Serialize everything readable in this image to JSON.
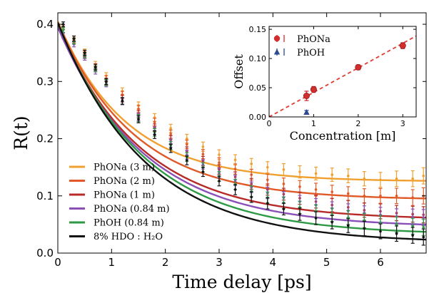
{
  "chart_data": [
    {
      "type": "line",
      "title": "",
      "xlabel": "Time delay [ps]",
      "ylabel": "R(t)",
      "xlim": [
        0,
        6.85
      ],
      "ylim": [
        0,
        0.42
      ],
      "xticks": [
        0,
        1,
        2,
        3,
        4,
        5,
        6
      ],
      "yticks": [
        0.0,
        0.1,
        0.2,
        0.3,
        0.4
      ],
      "xtick_labels": [
        "0",
        "1",
        "2",
        "3",
        "4",
        "5",
        "6"
      ],
      "ytick_labels": [
        "0.0",
        "0.1",
        "0.2",
        "0.3",
        "0.4"
      ],
      "legend_position": "bottom-left",
      "grid": false,
      "series": [
        {
          "name": "PhONa (3 m)",
          "color": "#f0a030",
          "fit": {
            "A": 0.28,
            "tau": 1.28,
            "C": 0.125
          },
          "x": [
            0.1,
            0.3,
            0.5,
            0.7,
            0.9,
            1.2,
            1.5,
            1.8,
            2.1,
            2.4,
            2.7,
            3.0,
            3.3,
            3.6,
            3.9,
            4.2,
            4.5,
            4.8,
            5.1,
            5.4,
            5.7,
            6.0,
            6.3,
            6.6,
            6.8
          ],
          "y": [
            0.395,
            0.375,
            0.352,
            0.33,
            0.31,
            0.283,
            0.258,
            0.237,
            0.218,
            0.2,
            0.186,
            0.172,
            0.163,
            0.156,
            0.15,
            0.146,
            0.142,
            0.139,
            0.137,
            0.135,
            0.13,
            0.128,
            0.13,
            0.13,
            0.135
          ]
        },
        {
          "name": "PhONa (2 m)",
          "color": "#e05a28",
          "fit": {
            "A": 0.31,
            "tau": 1.42,
            "C": 0.093
          },
          "x": [
            0.1,
            0.3,
            0.5,
            0.7,
            0.9,
            1.2,
            1.5,
            1.8,
            2.1,
            2.4,
            2.7,
            3.0,
            3.3,
            3.6,
            3.9,
            4.2,
            4.5,
            4.8,
            5.1,
            5.4,
            5.7,
            6.0,
            6.3,
            6.6,
            6.8
          ],
          "y": [
            0.395,
            0.372,
            0.348,
            0.326,
            0.305,
            0.277,
            0.252,
            0.229,
            0.208,
            0.19,
            0.173,
            0.158,
            0.147,
            0.137,
            0.128,
            0.121,
            0.116,
            0.111,
            0.107,
            0.104,
            0.1,
            0.1,
            0.1,
            0.097,
            0.1
          ]
        },
        {
          "name": "PhONa (1 m)",
          "color": "#b82a28",
          "fit": {
            "A": 0.34,
            "tau": 1.55,
            "C": 0.058
          },
          "x": [
            0.1,
            0.3,
            0.5,
            0.7,
            0.9,
            1.2,
            1.5,
            1.8,
            2.1,
            2.4,
            2.7,
            3.0,
            3.3,
            3.6,
            3.9,
            4.2,
            4.5,
            4.8,
            5.1,
            5.4,
            5.7,
            6.0,
            6.3,
            6.6,
            6.8
          ],
          "y": [
            0.395,
            0.37,
            0.345,
            0.322,
            0.299,
            0.27,
            0.243,
            0.219,
            0.198,
            0.178,
            0.161,
            0.146,
            0.133,
            0.121,
            0.111,
            0.103,
            0.096,
            0.09,
            0.084,
            0.08,
            0.075,
            0.073,
            0.07,
            0.068,
            0.067
          ]
        },
        {
          "name": "PhONa (0.84 m)",
          "color": "#8a50b8",
          "fit": {
            "A": 0.35,
            "tau": 1.6,
            "C": 0.045
          },
          "x": [
            0.1,
            0.3,
            0.5,
            0.7,
            0.9,
            1.2,
            1.5,
            1.8,
            2.1,
            2.4,
            2.7,
            3.0,
            3.3,
            3.6,
            3.9,
            4.2,
            4.5,
            4.8,
            5.1,
            5.4,
            5.7,
            6.0,
            6.3,
            6.6,
            6.8
          ],
          "y": [
            0.38,
            0.365,
            0.342,
            0.318,
            0.296,
            0.265,
            0.238,
            0.214,
            0.192,
            0.172,
            0.155,
            0.14,
            0.127,
            0.115,
            0.105,
            0.097,
            0.09,
            0.084,
            0.078,
            0.074,
            0.07,
            0.067,
            0.064,
            0.063,
            0.062
          ]
        },
        {
          "name": "PhOH (0.84 m)",
          "color": "#2e9a45",
          "fit": {
            "A": 0.37,
            "tau": 1.6,
            "C": 0.032
          },
          "x": [
            0.1,
            0.3,
            0.5,
            0.7,
            0.9,
            1.2,
            1.5,
            1.8,
            2.1,
            2.4,
            2.7,
            3.0,
            3.3,
            3.6,
            3.9,
            4.2,
            4.5,
            4.8,
            5.1,
            5.4,
            5.7,
            6.0,
            6.3,
            6.6,
            6.8
          ],
          "y": [
            0.39,
            0.37,
            0.346,
            0.322,
            0.298,
            0.266,
            0.236,
            0.211,
            0.188,
            0.168,
            0.15,
            0.134,
            0.12,
            0.108,
            0.097,
            0.088,
            0.08,
            0.073,
            0.067,
            0.062,
            0.057,
            0.053,
            0.05,
            0.047,
            0.045
          ]
        },
        {
          "name": "8% HDO : H₂O",
          "color": "#111111",
          "fit": {
            "A": 0.385,
            "tau": 1.62,
            "C": 0.018
          },
          "x": [
            0.1,
            0.3,
            0.5,
            0.7,
            0.9,
            1.2,
            1.5,
            1.8,
            2.1,
            2.4,
            2.7,
            3.0,
            3.3,
            3.6,
            3.9,
            4.2,
            4.5,
            4.8,
            5.1,
            5.4,
            5.7,
            6.0,
            6.3,
            6.6,
            6.8
          ],
          "y": [
            0.4,
            0.375,
            0.35,
            0.325,
            0.3,
            0.266,
            0.234,
            0.207,
            0.183,
            0.162,
            0.142,
            0.126,
            0.111,
            0.098,
            0.087,
            0.077,
            0.068,
            0.061,
            0.054,
            0.048,
            0.043,
            0.038,
            0.034,
            0.031,
            0.028
          ]
        }
      ]
    },
    {
      "type": "scatter",
      "title": "",
      "xlabel": "Concentration [m]",
      "ylabel": "Offset",
      "xlim": [
        0,
        3.3
      ],
      "ylim": [
        0,
        0.155
      ],
      "xticks": [
        0,
        1,
        2,
        3
      ],
      "yticks": [
        0.0,
        0.05,
        0.1,
        0.15
      ],
      "xtick_labels": [
        "0",
        "1",
        "2",
        "3"
      ],
      "ytick_labels": [
        "0.00",
        "0.05",
        "0.10",
        "0.15"
      ],
      "legend_position": "top-left",
      "fit_line": {
        "slope": 0.042,
        "intercept": 0.0,
        "color": "#e03c30"
      },
      "series": [
        {
          "name": "PhONa",
          "color": "#d22e2e",
          "marker": "circle",
          "x": [
            0.84,
            1.0,
            2.0,
            3.0
          ],
          "y": [
            0.036,
            0.047,
            0.085,
            0.122
          ],
          "err": [
            0.008,
            0.005,
            0.004,
            0.005
          ]
        },
        {
          "name": "PhOH",
          "color": "#2b4a90",
          "marker": "triangle",
          "x": [
            0.84
          ],
          "y": [
            0.008
          ],
          "err": [
            0.003
          ]
        }
      ]
    }
  ]
}
